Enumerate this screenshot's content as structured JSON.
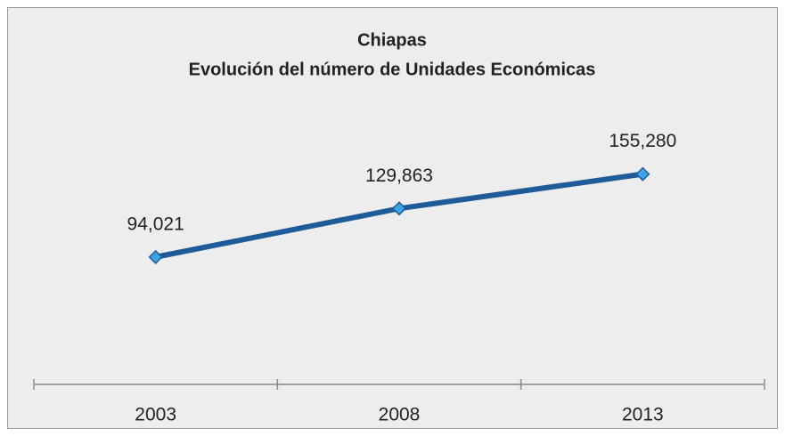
{
  "chart_data": {
    "type": "line",
    "title": "Chiapas",
    "subtitle": "Evolución del número de Unidades Económicas",
    "categories": [
      "2003",
      "2008",
      "2013"
    ],
    "series": [
      {
        "name": "Unidades Económicas",
        "color": "#1f5b98",
        "marker_color": "#3ba3e6",
        "values": [
          94021,
          129863,
          155280
        ],
        "value_labels": [
          "94,021",
          "129,863",
          "155,280"
        ]
      }
    ],
    "ylim": [
      0,
      180000
    ]
  }
}
